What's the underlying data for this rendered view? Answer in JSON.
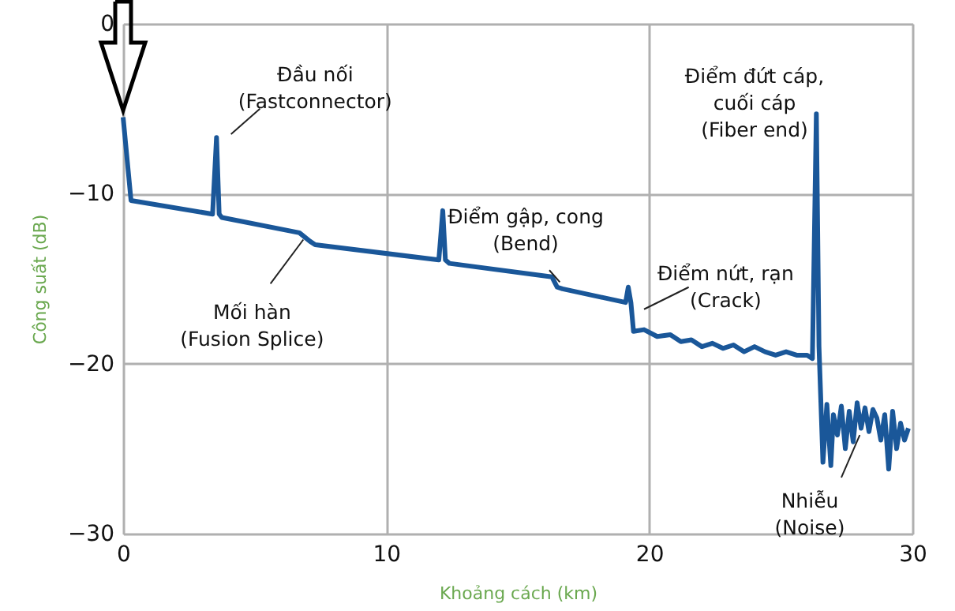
{
  "chart_data": {
    "type": "line",
    "xlabel": "Khoảng cách (km)",
    "ylabel": "Công suất (dB)",
    "xlim": [
      0,
      30
    ],
    "xticks": [
      0,
      10,
      20,
      30
    ],
    "ylim": [
      -30,
      0
    ],
    "yticks": [
      0,
      -10,
      -20,
      -30
    ],
    "grid": true,
    "marker": "none",
    "line_style": "solid",
    "series": [
      {
        "color": "#1a5799",
        "x": [
          0,
          0.3,
          3.4,
          3.55,
          3.65,
          3.75,
          6.7,
          7.1,
          7.3,
          12.0,
          12.15,
          12.25,
          12.4,
          16.3,
          16.5,
          16.7,
          19.1,
          19.2,
          19.3,
          19.4,
          19.8,
          20.3,
          20.8,
          21.2,
          21.6,
          22.0,
          22.4,
          22.8,
          23.2,
          23.6,
          24.0,
          24.4,
          24.8,
          25.2,
          25.6,
          26.0,
          26.2,
          26.35,
          26.45,
          26.6,
          26.75,
          26.9,
          27.0,
          27.15,
          27.3,
          27.45,
          27.6,
          27.75,
          27.9,
          28.05,
          28.2,
          28.35,
          28.5,
          28.65,
          28.8,
          28.95,
          29.1,
          29.25,
          29.4,
          29.55,
          29.7,
          29.85
        ],
        "values": [
          -5.5,
          -10.4,
          -11.2,
          -6.7,
          -11.2,
          -11.4,
          -12.3,
          -12.8,
          -13.0,
          -13.9,
          -11.0,
          -13.9,
          -14.1,
          -14.9,
          -15.5,
          -15.6,
          -16.4,
          -15.5,
          -16.4,
          -18.1,
          -18.0,
          -18.4,
          -18.3,
          -18.7,
          -18.6,
          -19.0,
          -18.8,
          -19.1,
          -18.9,
          -19.3,
          -19.0,
          -19.3,
          -19.5,
          -19.3,
          -19.5,
          -19.5,
          -19.7,
          -5.3,
          -19.0,
          -25.8,
          -22.4,
          -26.0,
          -23.0,
          -24.2,
          -22.5,
          -25.0,
          -22.8,
          -24.6,
          -22.3,
          -23.8,
          -22.6,
          -24.0,
          -22.7,
          -23.2,
          -24.5,
          -23.0,
          -26.2,
          -22.8,
          -25.0,
          -23.5,
          -24.5,
          -23.8
        ]
      }
    ],
    "annotations": [
      {
        "text": "Đầu nối\n(Fastconnector)",
        "x": 3.6,
        "y": -6.7
      },
      {
        "text": "Mối hàn\n(Fusion Splice)",
        "x": 6.9,
        "y": -12.4
      },
      {
        "text": "Điểm gập, cong\n(Bend)",
        "x": 16.5,
        "y": -15.2
      },
      {
        "text": "Điểm nứt, rạn\n(Crack)",
        "x": 19.5,
        "y": -16.6
      },
      {
        "text": "Điểm đứt cáp,\ncuối cáp\n(Fiber end)",
        "x": 26.4,
        "y": -5.3
      },
      {
        "text": "Nhiễu\n(Noise)",
        "x": 28.05,
        "y": -23.8
      }
    ]
  }
}
